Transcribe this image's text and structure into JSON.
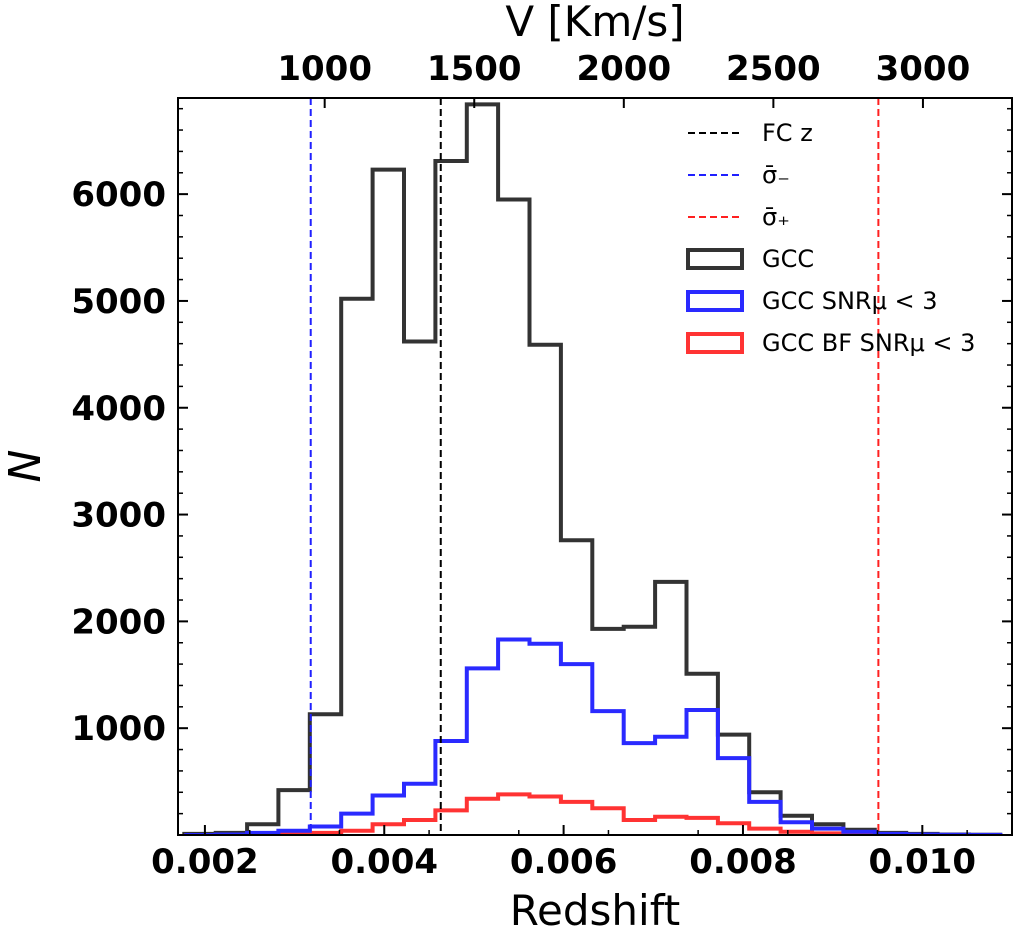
{
  "chart_data": {
    "type": "histogram",
    "xlabel": "Redshift",
    "ylabel": "N",
    "top_xlabel": "V [Km/s]",
    "xlim": [
      0.0017,
      0.011
    ],
    "ylim": [
      0,
      6900
    ],
    "xticks": [
      {
        "value": 0.002,
        "label": "0.002"
      },
      {
        "value": 0.004,
        "label": "0.004"
      },
      {
        "value": 0.006,
        "label": "0.006"
      },
      {
        "value": 0.008,
        "label": "0.008"
      },
      {
        "value": 0.01,
        "label": "0.010"
      }
    ],
    "yticks": [
      {
        "value": 1000,
        "label": "1000"
      },
      {
        "value": 2000,
        "label": "2000"
      },
      {
        "value": 3000,
        "label": "3000"
      },
      {
        "value": 4000,
        "label": "4000"
      },
      {
        "value": 5000,
        "label": "5000"
      },
      {
        "value": 6000,
        "label": "6000"
      }
    ],
    "top_xticks": [
      {
        "value": 1000,
        "label": "1000"
      },
      {
        "value": 1500,
        "label": "1500"
      },
      {
        "value": 2000,
        "label": "2000"
      },
      {
        "value": 2500,
        "label": "2500"
      },
      {
        "value": 3000,
        "label": "3000"
      }
    ],
    "velocity_per_redshift": 299792.458,
    "bin_edges": [
      0.00177,
      0.00212,
      0.00247,
      0.00282,
      0.00317,
      0.00352,
      0.00387,
      0.00422,
      0.00457,
      0.00492,
      0.00527,
      0.00562,
      0.00597,
      0.00632,
      0.00667,
      0.00702,
      0.00737,
      0.00772,
      0.00807,
      0.00842,
      0.00877,
      0.00912,
      0.00947,
      0.00982,
      0.01017,
      0.01052,
      0.01087
    ],
    "series": [
      {
        "name": "GCC",
        "color": "#333333",
        "values": [
          10,
          20,
          100,
          420,
          1130,
          5020,
          6230,
          4620,
          6310,
          6840,
          5950,
          4590,
          2760,
          1930,
          1950,
          2370,
          1510,
          940,
          400,
          180,
          100,
          50,
          20,
          10,
          5,
          2
        ]
      },
      {
        "name": "GCC SNR_μ < 3",
        "color": "#2a2aff",
        "values": [
          0,
          5,
          20,
          40,
          80,
          200,
          370,
          480,
          880,
          1560,
          1830,
          1790,
          1600,
          1160,
          860,
          920,
          1170,
          720,
          310,
          120,
          60,
          30,
          10,
          5,
          2,
          1
        ]
      },
      {
        "name": "GCC BF SNR_μ < 3",
        "color": "#ff3333",
        "values": [
          0,
          0,
          5,
          10,
          20,
          40,
          100,
          140,
          230,
          340,
          380,
          360,
          310,
          250,
          140,
          170,
          160,
          110,
          60,
          30,
          15,
          8,
          3,
          1,
          0,
          0
        ]
      }
    ],
    "vlines": [
      {
        "name": "FC z",
        "x": 0.00463,
        "color": "#000000"
      },
      {
        "name": "σ̄₋",
        "x": 0.00318,
        "color": "#2020ff"
      },
      {
        "name": "σ̄₊",
        "x": 0.00951,
        "color": "#ff2020"
      }
    ],
    "legend": {
      "position": "top-right",
      "entries": [
        {
          "kind": "line",
          "text": "FC z",
          "color": "#000000"
        },
        {
          "kind": "line",
          "text": "σ̄₋",
          "color": "#2020ff"
        },
        {
          "kind": "line",
          "text": "σ̄₊",
          "color": "#ff2020"
        },
        {
          "kind": "box",
          "text": "GCC",
          "color": "#333333"
        },
        {
          "kind": "box",
          "text": "GCC SNRμ < 3",
          "color": "#2a2aff"
        },
        {
          "kind": "box",
          "text": "GCC BF SNRμ < 3",
          "color": "#ff3333"
        }
      ]
    }
  }
}
